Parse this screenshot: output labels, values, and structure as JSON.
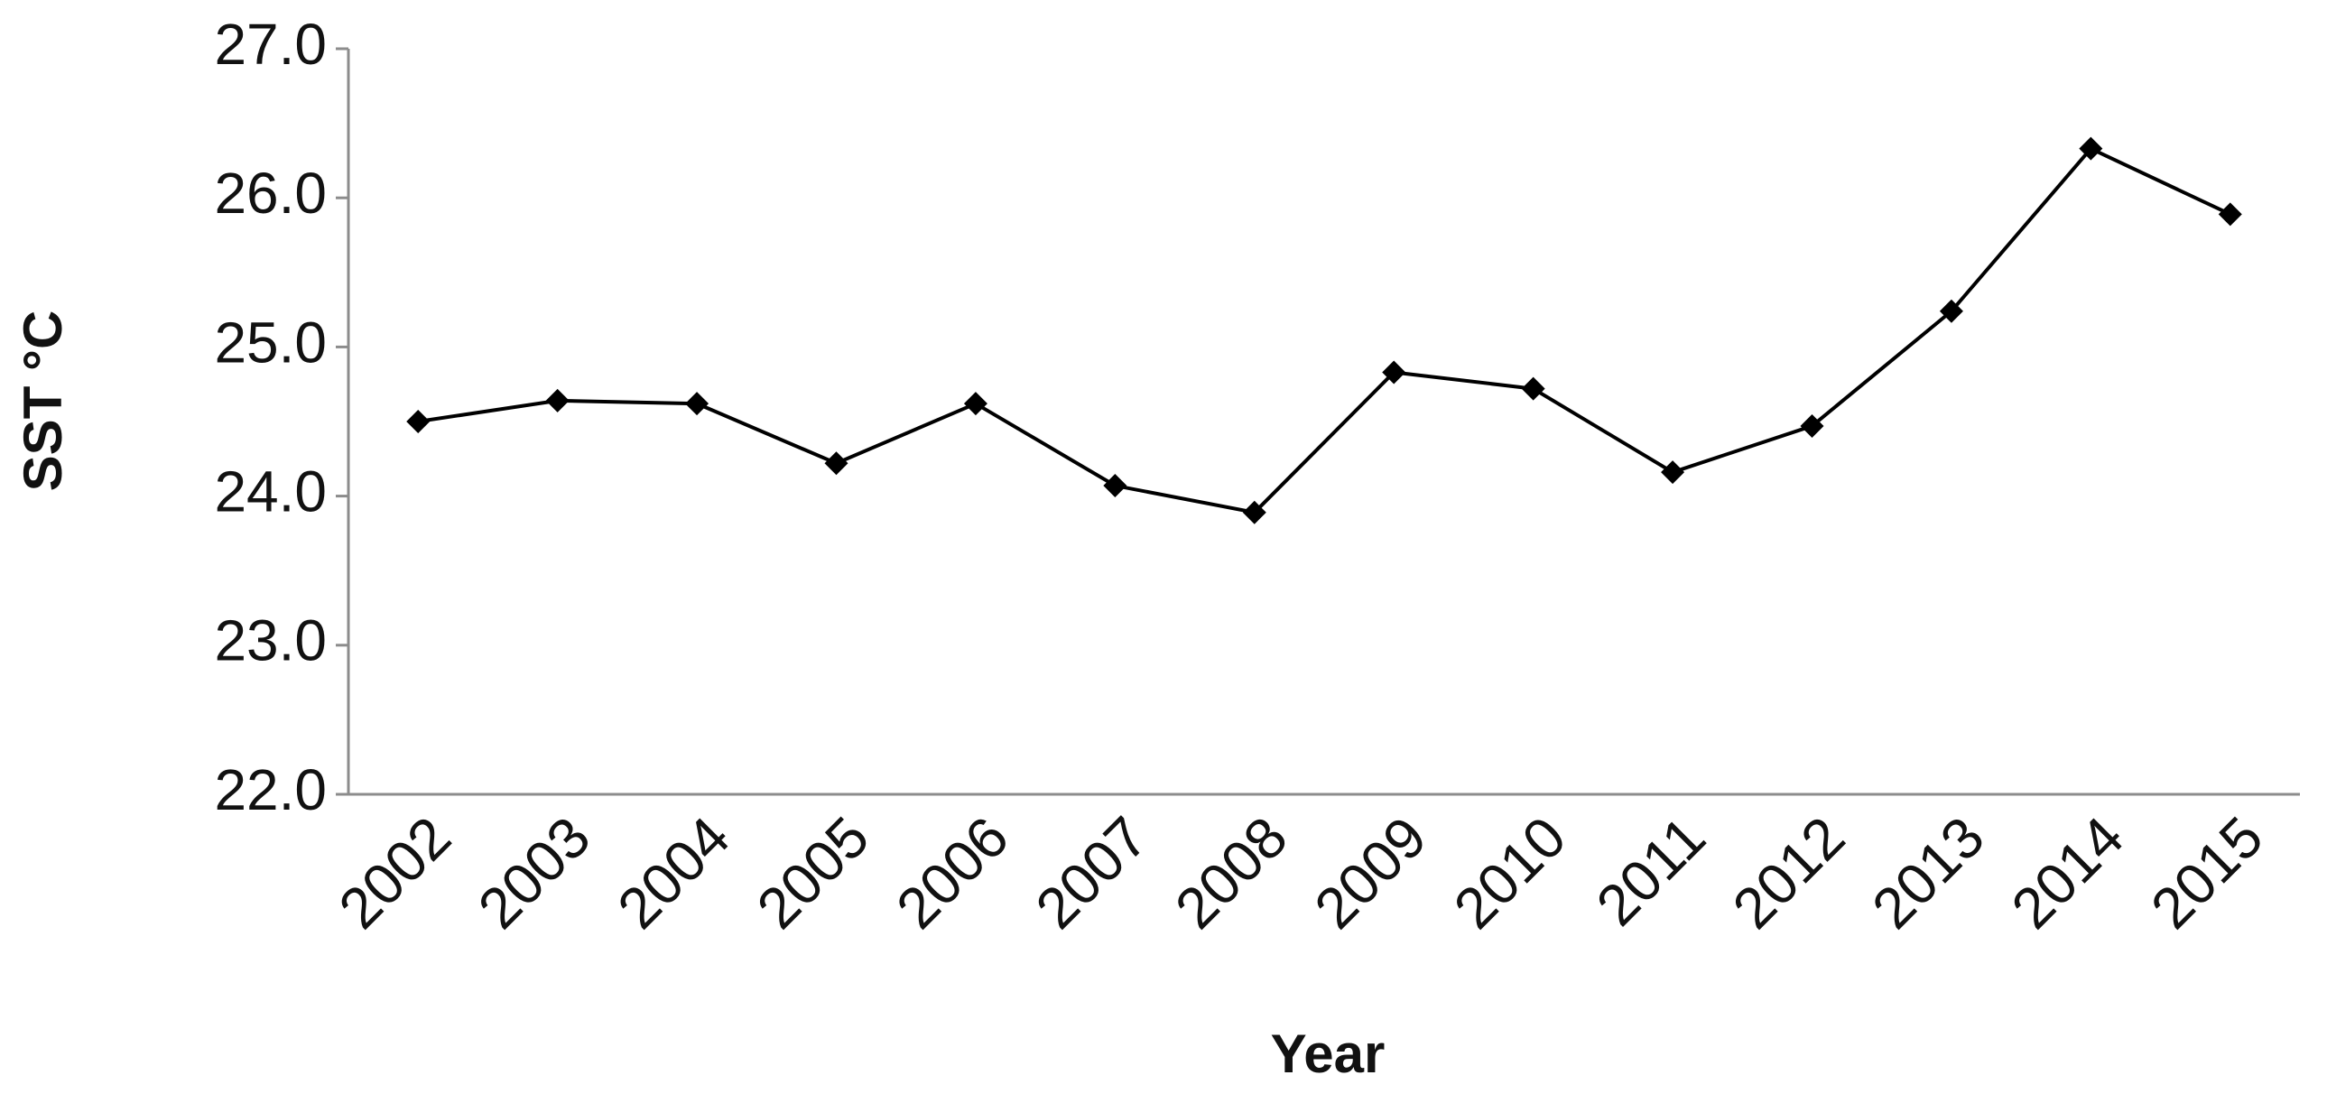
{
  "chart_data": {
    "type": "line",
    "x_label": "Year",
    "y_label": "SST °C",
    "categories": [
      "2002",
      "2003",
      "2004",
      "2005",
      "2006",
      "2007",
      "2008",
      "2009",
      "2010",
      "2011",
      "2012",
      "2013",
      "2014",
      "2015"
    ],
    "values": [
      24.5,
      24.64,
      24.62,
      24.22,
      24.62,
      24.07,
      23.89,
      24.83,
      24.72,
      24.16,
      24.47,
      25.24,
      26.33,
      25.89
    ],
    "color": "#000000",
    "ylim": [
      22,
      27
    ],
    "yticks": [
      {
        "value": 22,
        "label": "22.0"
      },
      {
        "value": 23,
        "label": "23.0"
      },
      {
        "value": 24,
        "label": "24.0"
      },
      {
        "value": 25,
        "label": "25.0"
      },
      {
        "value": 26,
        "label": "26.0"
      },
      {
        "value": 27,
        "label": "27.0"
      }
    ],
    "grid": false
  }
}
